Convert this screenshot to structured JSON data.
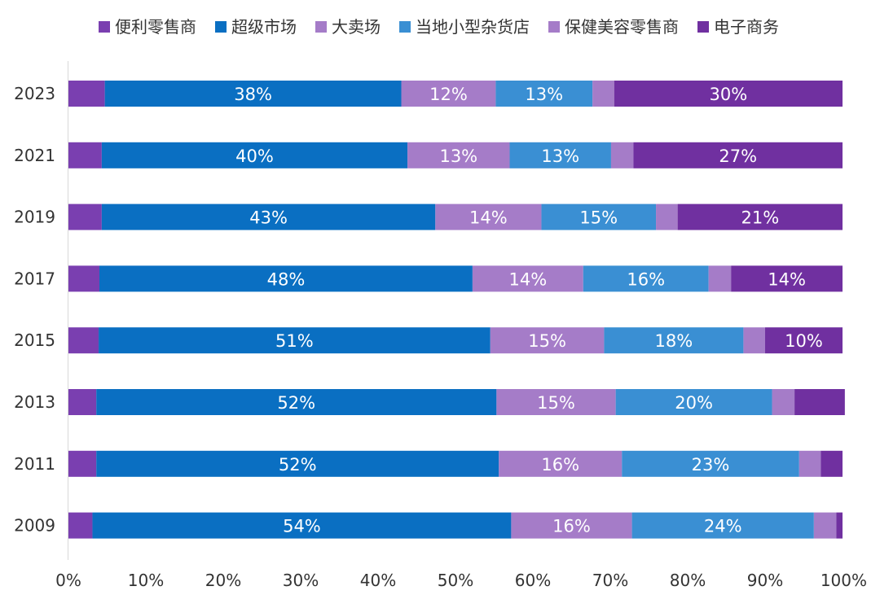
{
  "chart_data": {
    "type": "bar",
    "orientation": "horizontal",
    "stacked": true,
    "percent_stacked": true,
    "categories": [
      "2023",
      "2021",
      "2019",
      "2017",
      "2015",
      "2013",
      "2011",
      "2009"
    ],
    "series": [
      {
        "name": "便利零售商",
        "color": "#7a3fb0",
        "values": [
          0.047,
          0.043,
          0.043,
          0.04,
          0.039,
          0.036,
          0.036,
          0.031
        ]
      },
      {
        "name": "超级市场",
        "color": "#0a6fc2",
        "values": [
          0.383,
          0.395,
          0.431,
          0.482,
          0.506,
          0.517,
          0.52,
          0.541
        ]
      },
      {
        "name": "大卖场",
        "color": "#a57cc8",
        "values": [
          0.122,
          0.132,
          0.137,
          0.143,
          0.147,
          0.154,
          0.159,
          0.156
        ]
      },
      {
        "name": "当地小型杂货店",
        "color": "#3a8fd3",
        "values": [
          0.125,
          0.131,
          0.148,
          0.162,
          0.18,
          0.202,
          0.229,
          0.235
        ]
      },
      {
        "name": "保健美容零售商",
        "color": "#a57cc8",
        "values": [
          0.028,
          0.029,
          0.028,
          0.029,
          0.028,
          0.029,
          0.028,
          0.029
        ]
      },
      {
        "name": "电子商务",
        "color": "#7030a0",
        "values": [
          0.295,
          0.27,
          0.213,
          0.144,
          0.1,
          0.065,
          0.028,
          0.008
        ]
      }
    ],
    "data_labels": [
      [
        "",
        "38%",
        "12%",
        "13%",
        "",
        "30%"
      ],
      [
        "",
        "40%",
        "13%",
        "13%",
        "",
        "27%"
      ],
      [
        "",
        "43%",
        "14%",
        "15%",
        "",
        "21%"
      ],
      [
        "",
        "48%",
        "14%",
        "16%",
        "",
        "14%"
      ],
      [
        "",
        "51%",
        "15%",
        "18%",
        "",
        "10%"
      ],
      [
        "",
        "52%",
        "15%",
        "20%",
        "",
        ""
      ],
      [
        "",
        "52%",
        "16%",
        "23%",
        "",
        ""
      ],
      [
        "",
        "54%",
        "16%",
        "24%",
        "",
        ""
      ]
    ],
    "x_ticks": [
      "0%",
      "10%",
      "20%",
      "30%",
      "40%",
      "50%",
      "60%",
      "70%",
      "80%",
      "90%",
      "100%"
    ],
    "xlim": [
      0,
      1
    ],
    "legend_position": "top",
    "grid": false,
    "title": "",
    "xlabel": "",
    "ylabel": ""
  }
}
